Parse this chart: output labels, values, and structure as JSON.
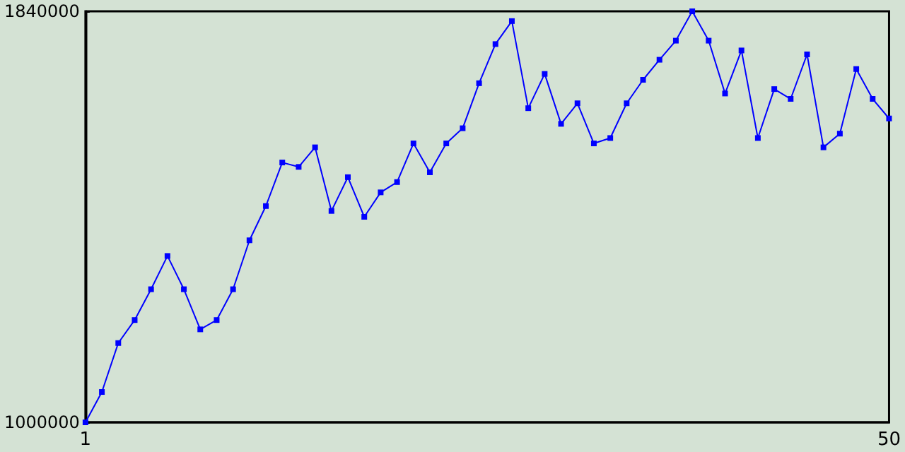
{
  "chart_data": {
    "type": "line",
    "marker": "square",
    "x": [
      1,
      2,
      3,
      4,
      5,
      6,
      7,
      8,
      9,
      10,
      11,
      12,
      13,
      14,
      15,
      16,
      17,
      18,
      19,
      20,
      21,
      22,
      23,
      24,
      25,
      26,
      27,
      28,
      29,
      30,
      31,
      32,
      33,
      34,
      35,
      36,
      37,
      38,
      39,
      40,
      41,
      42,
      43,
      44,
      45,
      46,
      47,
      48,
      49,
      50
    ],
    "series": [
      {
        "color": "#0000ff",
        "values": [
          1000000,
          1062000,
          1162000,
          1209000,
          1272000,
          1340000,
          1272000,
          1190000,
          1209000,
          1272000,
          1372000,
          1442000,
          1531000,
          1522000,
          1562000,
          1432000,
          1501000,
          1420000,
          1470000,
          1491000,
          1570000,
          1511000,
          1570000,
          1601000,
          1693000,
          1773000,
          1820000,
          1642000,
          1712000,
          1610000,
          1652000,
          1570000,
          1581000,
          1652000,
          1700000,
          1741000,
          1780000,
          1840000,
          1780000,
          1672000,
          1760000,
          1581000,
          1681000,
          1661000,
          1752000,
          1562000,
          1590000,
          1722000,
          1661000,
          1621000
        ]
      }
    ],
    "xlim": [
      1,
      50
    ],
    "xticks": [
      1,
      50
    ],
    "ylim": [
      1000000,
      1840000
    ],
    "yticks": [
      1000000,
      1840000
    ]
  }
}
